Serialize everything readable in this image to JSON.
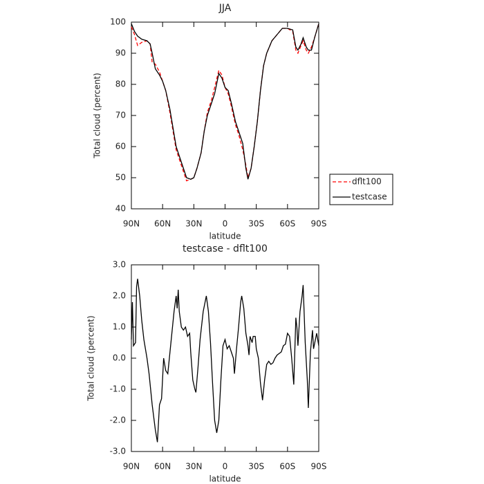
{
  "chart_data": [
    {
      "type": "line",
      "title": "JJA",
      "xlabel": "latitude",
      "ylabel": "Total cloud (percent)",
      "x": [
        90,
        87,
        84,
        80,
        75,
        72,
        70,
        67,
        63,
        60,
        57,
        53,
        50,
        47,
        44,
        40,
        37,
        33,
        30,
        27,
        23,
        20,
        17,
        13,
        10,
        6,
        3,
        0,
        -3,
        -6,
        -10,
        -13,
        -17,
        -20,
        -22,
        -25,
        -28,
        -31,
        -34,
        -37,
        -40,
        -45,
        -50,
        -55,
        -60,
        -65,
        -68,
        -70,
        -73,
        -75,
        -78,
        -80,
        -83,
        -86,
        -90
      ],
      "series": [
        {
          "name": "dflt100",
          "color": "#ff0000",
          "line_style": "dashed",
          "values": [
            98.5,
            96,
            92.5,
            93.5,
            94,
            93,
            87,
            86.5,
            84,
            81,
            78,
            71,
            65,
            59,
            56,
            52,
            49,
            49.5,
            50,
            53,
            58,
            65,
            71,
            75,
            79,
            84.5,
            83,
            79,
            77,
            73,
            67,
            64,
            59,
            54,
            50,
            53,
            60,
            68,
            78,
            86,
            90,
            94,
            96,
            98,
            98,
            97,
            91,
            90,
            92.5,
            94,
            91,
            90,
            92,
            95,
            99.5
          ]
        },
        {
          "name": "testcase",
          "color": "#000000",
          "line_style": "solid",
          "values": [
            99.5,
            97,
            95.5,
            94.5,
            94,
            93,
            90,
            85,
            83,
            81,
            78,
            72,
            66,
            60,
            57,
            53,
            50,
            49.5,
            50,
            53,
            58,
            65,
            70,
            74,
            77,
            83.5,
            82,
            79,
            78,
            74,
            68,
            65,
            61,
            53,
            49.5,
            53,
            60,
            68,
            78,
            86,
            90,
            94,
            96,
            98,
            98,
            97.5,
            92,
            91,
            93,
            95,
            92,
            91,
            91,
            95,
            99.5
          ]
        }
      ],
      "xlim": [
        90,
        -90
      ],
      "xticks": [
        {
          "value": 90,
          "label": "90N"
        },
        {
          "value": 60,
          "label": "60N"
        },
        {
          "value": 30,
          "label": "30N"
        },
        0,
        {
          "value": -30,
          "label": "30S"
        },
        {
          "value": -60,
          "label": "60S"
        },
        {
          "value": -90,
          "label": "90S"
        }
      ],
      "ylim": [
        40,
        100
      ],
      "yticks": [
        40,
        50,
        60,
        70,
        80,
        90,
        100
      ],
      "legend": "right"
    },
    {
      "type": "line",
      "title": "testcase - dflt100",
      "xlabel": "latitude",
      "ylabel": "Total cloud (percent)",
      "x": [
        90,
        89,
        88,
        86,
        85,
        84,
        82,
        80,
        78,
        75,
        73,
        70,
        67,
        65,
        63,
        61,
        59,
        57,
        55,
        52,
        49,
        47,
        46,
        45,
        44,
        42,
        40,
        38,
        36,
        34,
        33,
        31,
        29,
        28,
        26,
        24,
        21,
        18,
        16,
        14,
        12,
        10,
        8,
        6,
        4,
        2,
        0,
        -2,
        -4,
        -6,
        -8,
        -9,
        -11,
        -13,
        -15,
        -16,
        -18,
        -20,
        -22,
        -23,
        -24,
        -26,
        -27,
        -29,
        -30,
        -32,
        -34,
        -36,
        -38,
        -40,
        -42,
        -44,
        -46,
        -48,
        -50,
        -52,
        -54,
        -56,
        -58,
        -60,
        -62,
        -64,
        -66,
        -68,
        -69,
        -70,
        -72,
        -74,
        -75,
        -77,
        -79,
        -80,
        -82,
        -84,
        -85,
        -88,
        -90
      ],
      "series": [
        {
          "color": "#000000",
          "line_style": "solid",
          "values": [
            0.6,
            1.8,
            0.4,
            0.5,
            2.3,
            2.55,
            2.0,
            1.2,
            0.6,
            0,
            -0.5,
            -1.5,
            -2.3,
            -2.7,
            -1.5,
            -1.3,
            0,
            -0.4,
            -0.5,
            0.5,
            1.5,
            2.0,
            1.6,
            2.2,
            1.5,
            1.0,
            0.9,
            1.0,
            0.7,
            0.8,
            0.2,
            -0.7,
            -1.0,
            -1.1,
            -0.3,
            0.6,
            1.5,
            2.0,
            1.5,
            0.5,
            -0.8,
            -2.0,
            -2.4,
            -2.0,
            -0.7,
            0.4,
            0.6,
            0.3,
            0.4,
            0.2,
            0,
            -0.5,
            0.3,
            1.0,
            1.8,
            2.0,
            1.6,
            0.8,
            0.4,
            0.1,
            0.7,
            0.5,
            0.7,
            0.7,
            0.3,
            0,
            -0.8,
            -1.35,
            -0.7,
            -0.2,
            -0.1,
            -0.2,
            -0.15,
            0,
            0.1,
            0.15,
            0.2,
            0.4,
            0.45,
            0.8,
            0.7,
            0,
            -0.85,
            1.3,
            1.0,
            0.4,
            1.5,
            2.0,
            2.35,
            0.5,
            -0.7,
            -1.6,
            0.2,
            0.9,
            0.3,
            0.8,
            0.4
          ]
        }
      ],
      "xlim": [
        90,
        -90
      ],
      "xticks": [
        {
          "value": 90,
          "label": "90N"
        },
        {
          "value": 60,
          "label": "60N"
        },
        {
          "value": 30,
          "label": "30N"
        },
        0,
        {
          "value": -30,
          "label": "30S"
        },
        {
          "value": -60,
          "label": "60S"
        },
        {
          "value": -90,
          "label": "90S"
        }
      ],
      "ylim": [
        -3,
        3
      ],
      "yticks": [
        {
          "value": -3,
          "label": "-3.0"
        },
        {
          "value": -2,
          "label": "-2.0"
        },
        {
          "value": -1,
          "label": "-1.0"
        },
        {
          "value": 0,
          "label": "0.0"
        },
        {
          "value": 1,
          "label": "1.0"
        },
        {
          "value": 2,
          "label": "2.0"
        },
        {
          "value": 3,
          "label": "3.0"
        }
      ]
    }
  ]
}
